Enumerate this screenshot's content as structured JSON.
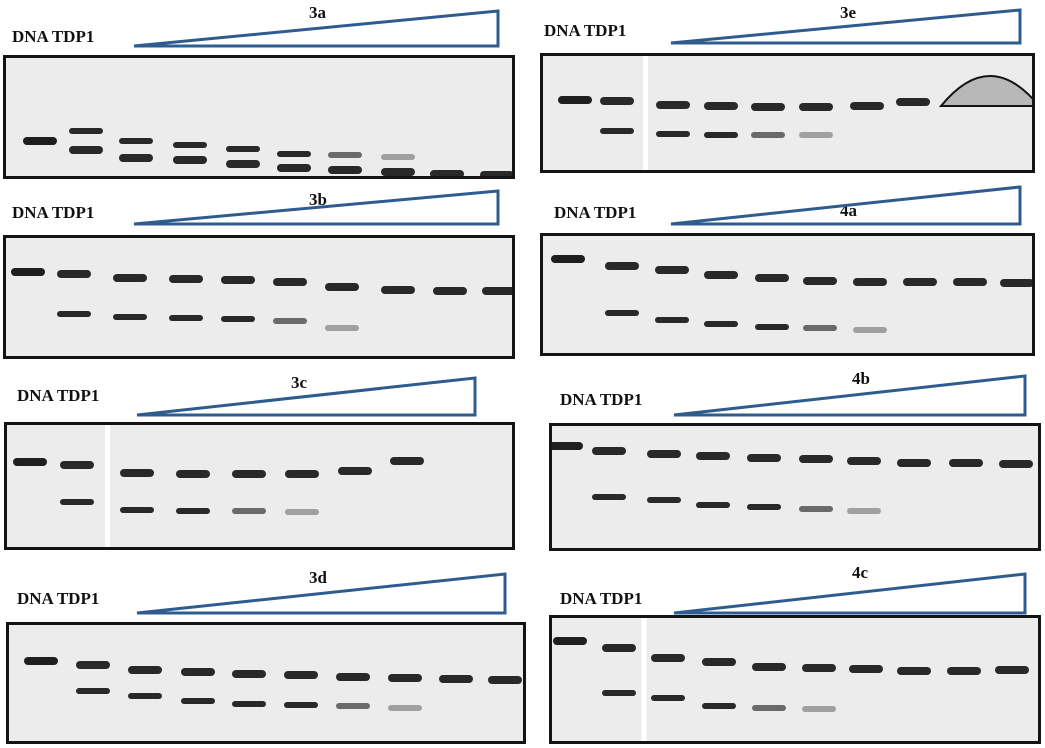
{
  "colors": {
    "wedge_stroke": "#2e5c8f",
    "gel_border": "#141414",
    "band": "#141414",
    "gel_background": "#ececec"
  },
  "panels": [
    {
      "id": "3a",
      "lanes_label": "DNA TDP1",
      "lane_count": 10,
      "lanes_with_product": 8,
      "split_after_lane": null,
      "notes_shown": "titration wedge"
    },
    {
      "id": "3e",
      "lanes_label": "DNA TDP1",
      "lane_count": 10,
      "lanes_with_product": 6,
      "split_after_lane": 2
    },
    {
      "id": "3b",
      "lanes_label": "DNA TDP1",
      "lane_count": 10,
      "lanes_with_product": 7,
      "split_after_lane": null
    },
    {
      "id": "4a",
      "lanes_label": "DNA TDP1",
      "lane_count": 10,
      "lanes_with_product": 7,
      "split_after_lane": null
    },
    {
      "id": "3c",
      "lanes_label": "DNA TDP1",
      "lane_count": 9,
      "lanes_with_product": 6,
      "split_after_lane": 2
    },
    {
      "id": "4b",
      "lanes_label": "DNA TDP1",
      "lane_count": 10,
      "lanes_with_product": 7,
      "split_after_lane": null
    },
    {
      "id": "3d",
      "lanes_label": "DNA TDP1",
      "lane_count": 10,
      "lanes_with_product": 8,
      "split_after_lane": null
    },
    {
      "id": "4c",
      "lanes_label": "DNA TDP1",
      "lane_count": 10,
      "lanes_with_product": 6,
      "split_after_lane": 2
    }
  ]
}
